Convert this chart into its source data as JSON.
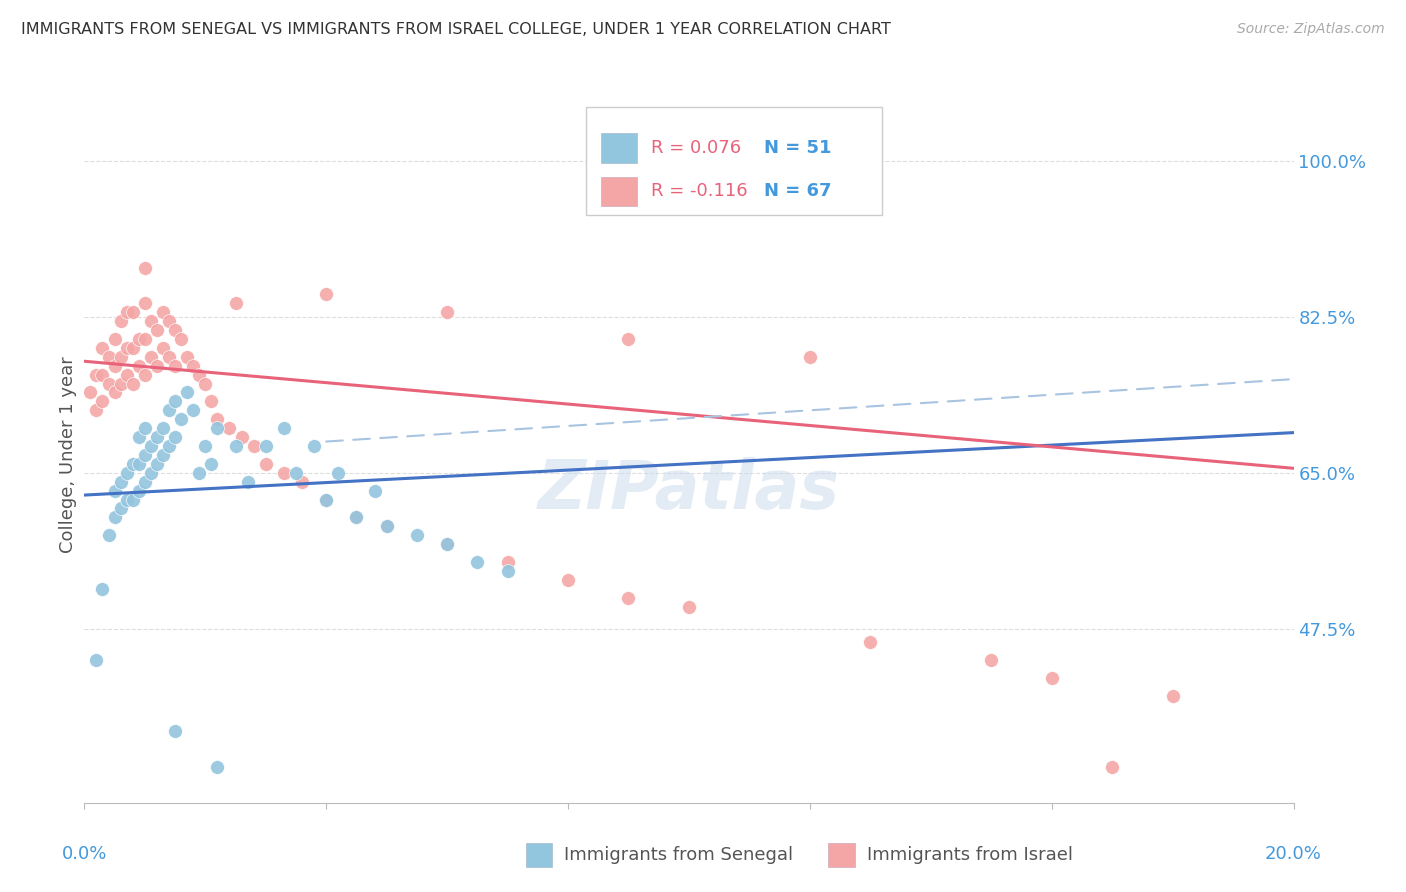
{
  "title": "IMMIGRANTS FROM SENEGAL VS IMMIGRANTS FROM ISRAEL COLLEGE, UNDER 1 YEAR CORRELATION CHART",
  "source": "Source: ZipAtlas.com",
  "ylabel": "College, Under 1 year",
  "ytick_labels": [
    "100.0%",
    "82.5%",
    "65.0%",
    "47.5%"
  ],
  "ytick_values": [
    1.0,
    0.825,
    0.65,
    0.475
  ],
  "xlim": [
    0.0,
    0.2
  ],
  "ylim": [
    0.28,
    1.06
  ],
  "legend_r1": "R = 0.076",
  "legend_n1": "N = 51",
  "legend_r2": "R = -0.116",
  "legend_n2": "N = 67",
  "color_blue": "#92c5de",
  "color_pink": "#f4a6a6",
  "color_blue_line": "#4472c4",
  "color_pink_line": "#e8637a",
  "color_dashed": "#a8c4e0",
  "color_axis_text": "#4499dd",
  "color_title": "#333333",
  "color_source": "#aaaaaa",
  "color_ylabel": "#555555",
  "color_grid": "#dddddd",
  "blue_x": [
    0.002,
    0.003,
    0.004,
    0.005,
    0.005,
    0.006,
    0.006,
    0.007,
    0.007,
    0.008,
    0.008,
    0.009,
    0.009,
    0.009,
    0.01,
    0.01,
    0.01,
    0.011,
    0.011,
    0.012,
    0.012,
    0.013,
    0.013,
    0.014,
    0.014,
    0.015,
    0.015,
    0.016,
    0.017,
    0.018,
    0.019,
    0.02,
    0.021,
    0.022,
    0.025,
    0.027,
    0.03,
    0.033,
    0.035,
    0.038,
    0.04,
    0.042,
    0.045,
    0.048,
    0.05,
    0.055,
    0.06,
    0.065,
    0.07,
    0.015,
    0.022
  ],
  "blue_y": [
    0.44,
    0.52,
    0.58,
    0.6,
    0.63,
    0.61,
    0.64,
    0.62,
    0.65,
    0.62,
    0.66,
    0.63,
    0.66,
    0.69,
    0.64,
    0.67,
    0.7,
    0.65,
    0.68,
    0.66,
    0.69,
    0.67,
    0.7,
    0.68,
    0.72,
    0.69,
    0.73,
    0.71,
    0.74,
    0.72,
    0.65,
    0.68,
    0.66,
    0.7,
    0.68,
    0.64,
    0.68,
    0.7,
    0.65,
    0.68,
    0.62,
    0.65,
    0.6,
    0.63,
    0.59,
    0.58,
    0.57,
    0.55,
    0.54,
    0.36,
    0.32
  ],
  "pink_x": [
    0.001,
    0.002,
    0.002,
    0.003,
    0.003,
    0.003,
    0.004,
    0.004,
    0.005,
    0.005,
    0.005,
    0.006,
    0.006,
    0.006,
    0.007,
    0.007,
    0.007,
    0.008,
    0.008,
    0.008,
    0.009,
    0.009,
    0.01,
    0.01,
    0.01,
    0.011,
    0.011,
    0.012,
    0.012,
    0.013,
    0.013,
    0.014,
    0.014,
    0.015,
    0.015,
    0.016,
    0.017,
    0.018,
    0.019,
    0.02,
    0.021,
    0.022,
    0.024,
    0.026,
    0.028,
    0.03,
    0.033,
    0.036,
    0.04,
    0.045,
    0.05,
    0.06,
    0.07,
    0.08,
    0.09,
    0.1,
    0.13,
    0.15,
    0.16,
    0.18,
    0.01,
    0.025,
    0.04,
    0.06,
    0.09,
    0.12,
    0.17
  ],
  "pink_y": [
    0.74,
    0.72,
    0.76,
    0.73,
    0.76,
    0.79,
    0.75,
    0.78,
    0.74,
    0.77,
    0.8,
    0.75,
    0.78,
    0.82,
    0.76,
    0.79,
    0.83,
    0.75,
    0.79,
    0.83,
    0.77,
    0.8,
    0.76,
    0.8,
    0.84,
    0.78,
    0.82,
    0.77,
    0.81,
    0.79,
    0.83,
    0.78,
    0.82,
    0.77,
    0.81,
    0.8,
    0.78,
    0.77,
    0.76,
    0.75,
    0.73,
    0.71,
    0.7,
    0.69,
    0.68,
    0.66,
    0.65,
    0.64,
    0.62,
    0.6,
    0.59,
    0.57,
    0.55,
    0.53,
    0.51,
    0.5,
    0.46,
    0.44,
    0.42,
    0.4,
    0.88,
    0.84,
    0.85,
    0.83,
    0.8,
    0.78,
    0.32
  ],
  "blue_trend_x0": 0.0,
  "blue_trend_y0": 0.625,
  "blue_trend_x1": 0.2,
  "blue_trend_y1": 0.695,
  "pink_trend_x0": 0.0,
  "pink_trend_y0": 0.775,
  "pink_trend_x1": 0.2,
  "pink_trend_y1": 0.655,
  "dashed_trend_x0": 0.04,
  "dashed_trend_y0": 0.685,
  "dashed_trend_x1": 0.2,
  "dashed_trend_y1": 0.755
}
